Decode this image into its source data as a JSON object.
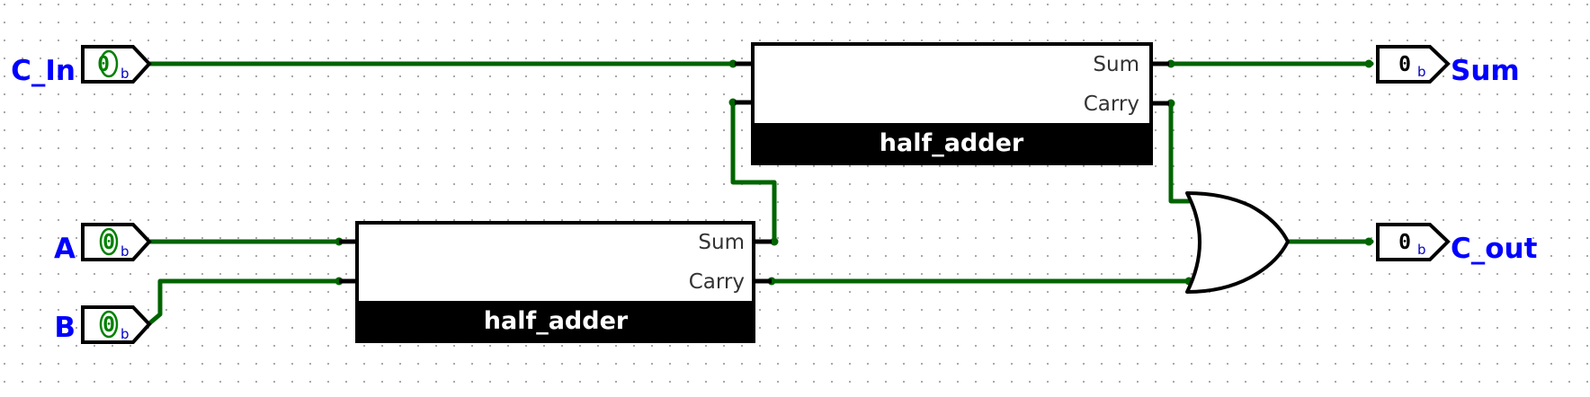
{
  "inputs": {
    "c_in": {
      "label": "C_In",
      "value": "0",
      "radix": "b"
    },
    "a": {
      "label": "A",
      "value": "0",
      "radix": "b"
    },
    "b": {
      "label": "B",
      "value": "0",
      "radix": "b"
    }
  },
  "outputs": {
    "sum": {
      "label": "Sum",
      "value": "0",
      "radix": "b"
    },
    "c_out": {
      "label": "C_out",
      "value": "0",
      "radix": "b"
    }
  },
  "half_adder_1": {
    "name": "half_adder",
    "port_sum": "Sum",
    "port_carry": "Carry"
  },
  "half_adder_2": {
    "name": "half_adder",
    "port_sum": "Sum",
    "port_carry": "Carry"
  },
  "or_gate": {
    "kind": "OR"
  },
  "colors": {
    "wire": "#006400",
    "label": "#0000ff",
    "input_value": "#008000",
    "output_value": "#000000",
    "component_bar": "#000000",
    "grid_dot": "#a0a0a0"
  }
}
